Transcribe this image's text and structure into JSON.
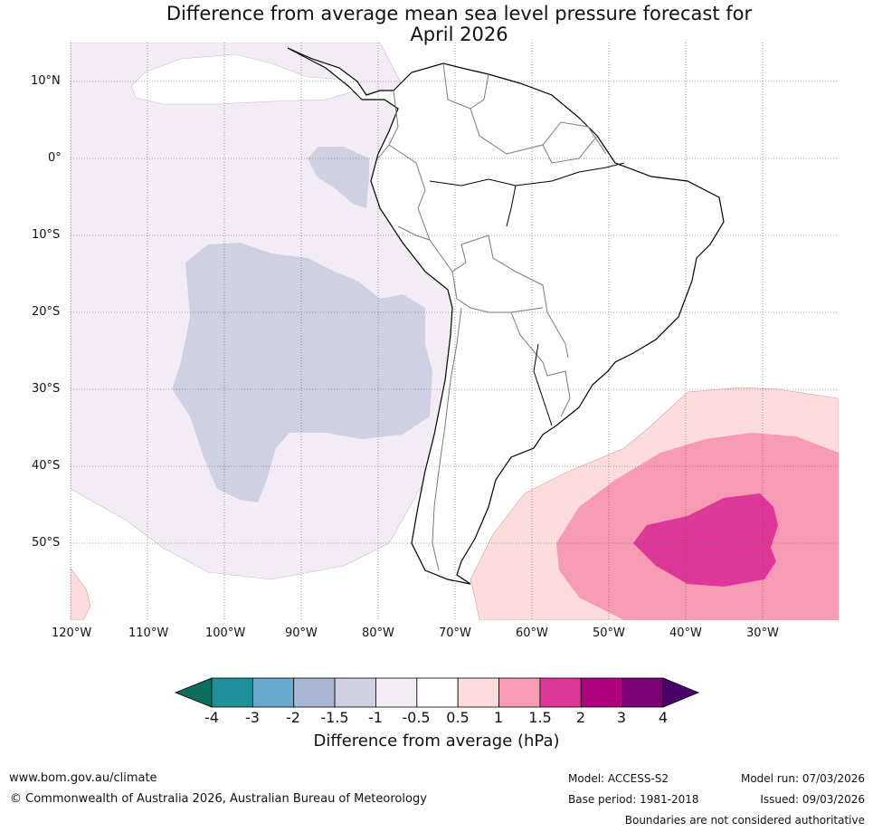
{
  "title": {
    "line1": "Difference from average mean sea level pressure forecast for",
    "line2": "April 2026"
  },
  "map": {
    "lat_labels": [
      "10°N",
      "0°",
      "10°S",
      "20°S",
      "30°S",
      "40°S",
      "50°S"
    ],
    "lon_labels": [
      "120°W",
      "110°W",
      "100°W",
      "90°W",
      "80°W",
      "70°W",
      "60°W",
      "50°W",
      "40°W",
      "30°W"
    ]
  },
  "colorbar": {
    "ticks": [
      "-4",
      "-3",
      "-2",
      "-1.5",
      "-1",
      "-0.5",
      "0.5",
      "1",
      "1.5",
      "2",
      "3",
      "4"
    ],
    "colors": [
      "#0e6e5e",
      "#1e9099",
      "#6aa9cf",
      "#aab7d4",
      "#cfd0e3",
      "#f3ecf5",
      "#ffffff",
      "#fddcdc",
      "#f79bb5",
      "#dd3797",
      "#ad017e",
      "#7a0177",
      "#4a006a"
    ],
    "label": "Difference from average (hPa)"
  },
  "footer": {
    "website": "www.bom.gov.au/climate",
    "copyright": "© Commonwealth of Australia 2026, Australian Bureau of Meteorology",
    "model": "Model: ACCESS-S2",
    "base_period": "Base period: 1981-2018",
    "model_run": "Model run: 07/03/2026",
    "issued": "Issued: 09/03/2026",
    "disclaimer": "Boundaries are not considered authoritative"
  }
}
